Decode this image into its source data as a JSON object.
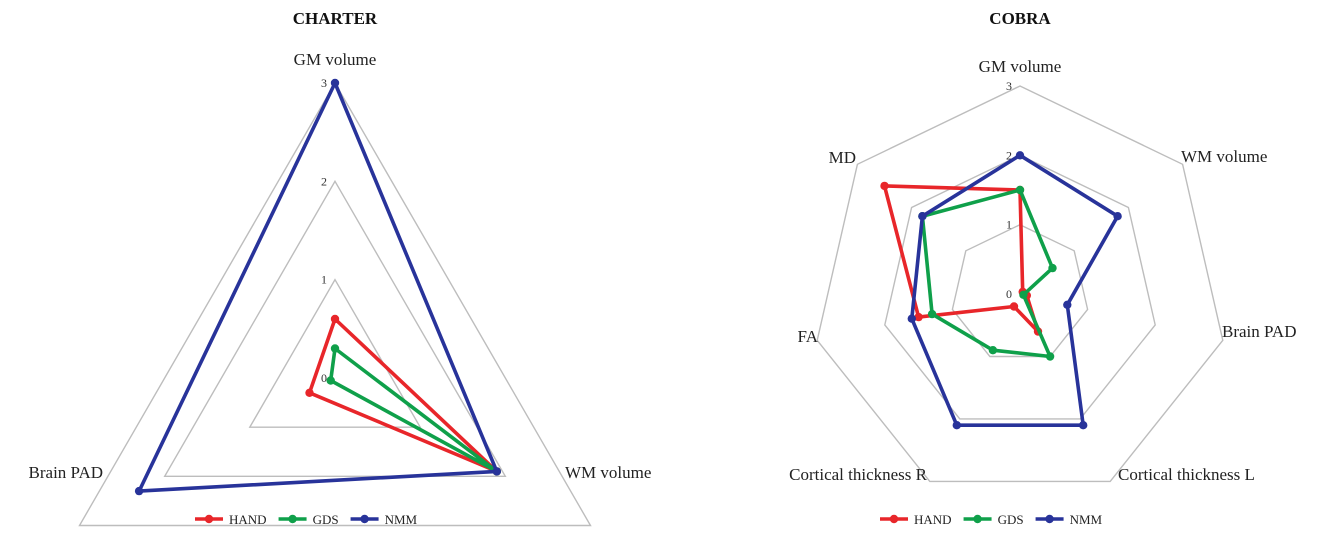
{
  "chart_data": [
    {
      "type": "radar",
      "title": "CHARTER",
      "axes": [
        "GM volume",
        "WM volume",
        "Brain PAD"
      ],
      "ticks": [
        0,
        1,
        2,
        3
      ],
      "range": [
        0,
        3
      ],
      "grid": true,
      "legend_position": "bottom",
      "series": [
        {
          "name": "HAND",
          "color": "#e8262a",
          "values": [
            0.6,
            1.9,
            0.3
          ]
        },
        {
          "name": "GDS",
          "color": "#0fa04a",
          "values": [
            0.3,
            1.9,
            0.05
          ]
        },
        {
          "name": "NMM",
          "color": "#28339a",
          "values": [
            3.0,
            1.9,
            2.3
          ]
        }
      ]
    },
    {
      "type": "radar",
      "title": "COBRA",
      "axes": [
        "GM volume",
        "WM volume",
        "Brain PAD",
        "Cortical thickness L",
        "Cortical thickness R",
        "FA",
        "MD"
      ],
      "ticks": [
        0,
        1,
        2,
        3
      ],
      "range": [
        0,
        3
      ],
      "grid": true,
      "legend_position": "bottom",
      "series": [
        {
          "name": "HAND",
          "color": "#e8262a",
          "values": [
            1.5,
            0.05,
            0.1,
            0.6,
            0.2,
            1.5,
            2.5
          ]
        },
        {
          "name": "GDS",
          "color": "#0fa04a",
          "values": [
            1.5,
            0.6,
            0.05,
            1.0,
            0.9,
            1.3,
            1.8
          ]
        },
        {
          "name": "NMM",
          "color": "#28339a",
          "values": [
            2.0,
            1.8,
            0.7,
            2.1,
            2.1,
            1.6,
            1.8
          ]
        }
      ]
    }
  ]
}
